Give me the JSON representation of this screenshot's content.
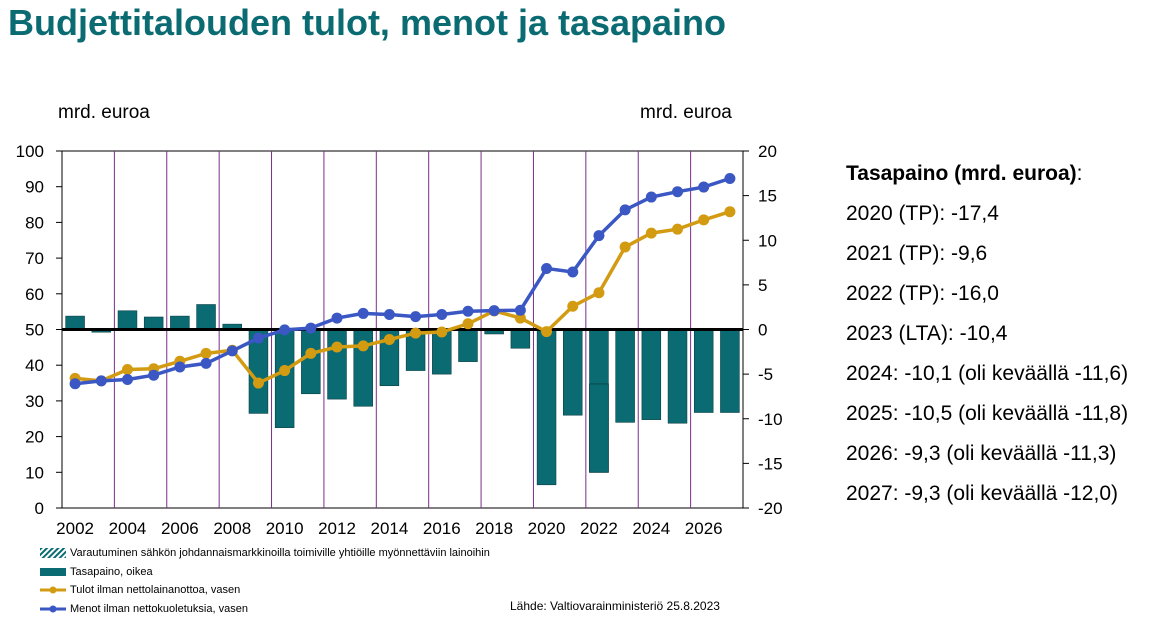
{
  "title": "Budjettitalouden tulot, menot ja tasapaino",
  "left_unit": "mrd. euroa",
  "right_unit": "mrd. euroa",
  "chart_data": {
    "type": "bar+line",
    "years": [
      2002,
      2003,
      2004,
      2005,
      2006,
      2007,
      2008,
      2009,
      2010,
      2011,
      2012,
      2013,
      2014,
      2015,
      2016,
      2017,
      2018,
      2019,
      2020,
      2021,
      2022,
      2023,
      2024,
      2025,
      2026,
      2027
    ],
    "x_tick_labels": [
      "2002",
      "2004",
      "2006",
      "2008",
      "2010",
      "2012",
      "2014",
      "2016",
      "2018",
      "2020",
      "2022",
      "2024",
      "2026"
    ],
    "left_axis": {
      "min": 0,
      "max": 100,
      "ticks": [
        "0",
        "10",
        "20",
        "30",
        "40",
        "50",
        "60",
        "70",
        "80",
        "90",
        "100"
      ]
    },
    "right_axis": {
      "min": -20,
      "max": 20,
      "ticks": [
        "-20",
        "-15",
        "-10",
        "-5",
        "0",
        "5",
        "10",
        "15",
        "20"
      ]
    },
    "series": [
      {
        "name": "Tasapaino, oikea",
        "axis": "right",
        "kind": "bar",
        "color": "#0b6b72",
        "values": [
          1.5,
          -0.3,
          2.1,
          1.4,
          1.5,
          2.8,
          0.6,
          -9.4,
          -11.0,
          -7.2,
          -7.8,
          -8.6,
          -6.3,
          -4.6,
          -5.0,
          -3.6,
          -0.5,
          -2.1,
          -17.4,
          -9.6,
          -16.0,
          -10.4,
          -10.1,
          -10.5,
          -9.3,
          -9.3
        ]
      },
      {
        "name": "Varautuminen sähkön johdannaismarkkinoilla toimiville yhtiöille myönnettäviin lainoihin",
        "axis": "right",
        "kind": "bar-hatched",
        "color": "#0b6b72",
        "year": 2022,
        "from": -6.1,
        "to": -16.0
      },
      {
        "name": "Tulot ilman nettolainanottoa, vasen",
        "axis": "left",
        "kind": "line",
        "color": "#d39b12",
        "values": [
          36.3,
          35.6,
          38.8,
          39.0,
          41.1,
          43.3,
          44.2,
          35.0,
          38.5,
          43.3,
          45.1,
          45.4,
          47.2,
          49.0,
          49.3,
          51.6,
          55.2,
          53.2,
          49.4,
          56.5,
          60.3,
          73.1,
          77.0,
          78.1,
          80.7,
          83.0
        ]
      },
      {
        "name": "Menot ilman nettokuoletuksia, vasen",
        "axis": "left",
        "kind": "line",
        "color": "#3a57c4",
        "values": [
          34.8,
          35.6,
          36.0,
          37.2,
          39.5,
          40.5,
          44.0,
          47.6,
          49.9,
          50.4,
          53.2,
          54.5,
          54.2,
          53.6,
          54.2,
          55.1,
          55.3,
          55.4,
          67.1,
          66.1,
          76.3,
          83.5,
          87.1,
          88.6,
          89.9,
          92.3
        ]
      }
    ]
  },
  "legend": [
    {
      "label": "Varautuminen sähkön johdannaismarkkinoilla toimiville yhtiöille myönnettäviin lainoihin",
      "key": "hatched"
    },
    {
      "label": "Tasapaino, oikea",
      "key": "bar"
    },
    {
      "label": "Tulot ilman nettolainanottoa, vasen",
      "key": "line-gold"
    },
    {
      "label": "Menot ilman nettokuoletuksia, vasen",
      "key": "line-blue"
    }
  ],
  "source": "Lähde: Valtiovarainministeriö 25.8.2023",
  "balance_panel": {
    "heading": "Tasapaino (mrd. euroa)",
    "heading_suffix": ":",
    "lines": [
      "2020 (TP): -17,4",
      "2021 (TP): -9,6",
      "2022 (TP): -16,0",
      "2023 (LTA): -10,4",
      "2024: -10,1 (oli keväällä -11,6)",
      "2025: -10,5 (oli keväällä -11,8)",
      "2026: -9,3 (oli keväällä -11,3)",
      "2027: -9,3 (oli keväällä -12,0)"
    ]
  },
  "colors": {
    "title": "#0b6b72",
    "bar": "#0b6b72",
    "tulot": "#d39b12",
    "menot": "#3a57c4",
    "grid": "#7a2f8a"
  }
}
